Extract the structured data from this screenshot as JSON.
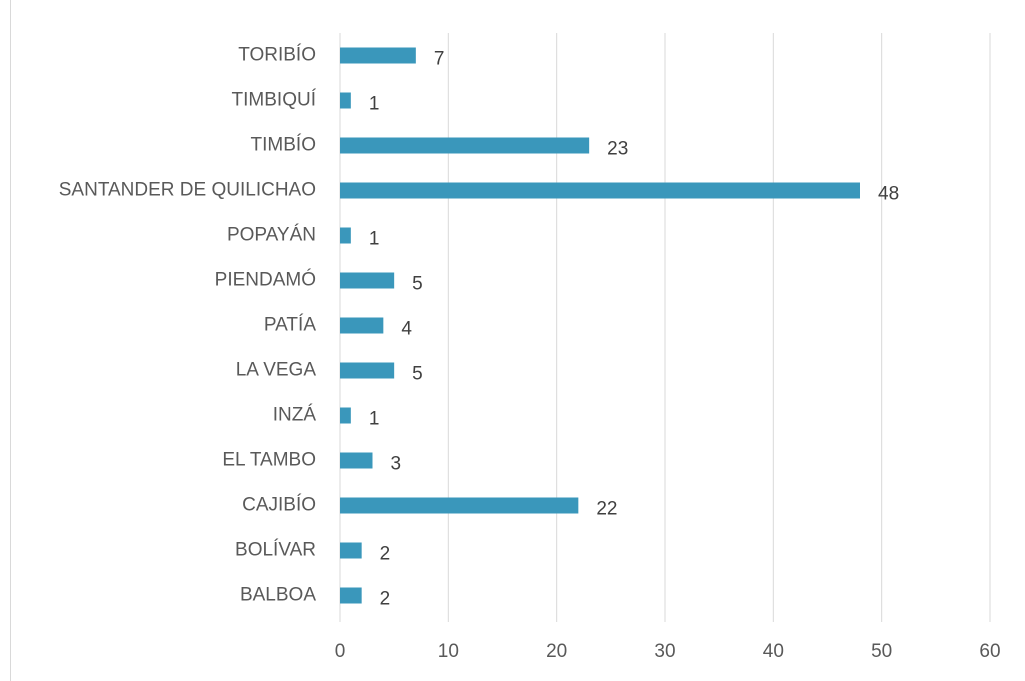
{
  "chart_data": {
    "type": "bar",
    "orientation": "horizontal",
    "categories": [
      "BALBOA",
      "BOLÍVAR",
      "CAJIBÍO",
      "EL TAMBO",
      "INZÁ",
      "LA VEGA",
      "PATÍA",
      "PIENDAMÓ",
      "POPAYÁN",
      "SANTANDER DE QUILICHAO",
      "TIMBÍO",
      "TIMBIQUÍ",
      "TORIBÍO"
    ],
    "values": [
      2,
      2,
      22,
      3,
      1,
      5,
      4,
      5,
      1,
      48,
      23,
      1,
      7
    ],
    "color": "#3a97bb",
    "xlim": [
      0,
      60
    ],
    "xticks": [
      0,
      10,
      20,
      30,
      40,
      50,
      60
    ],
    "grid": true
  }
}
